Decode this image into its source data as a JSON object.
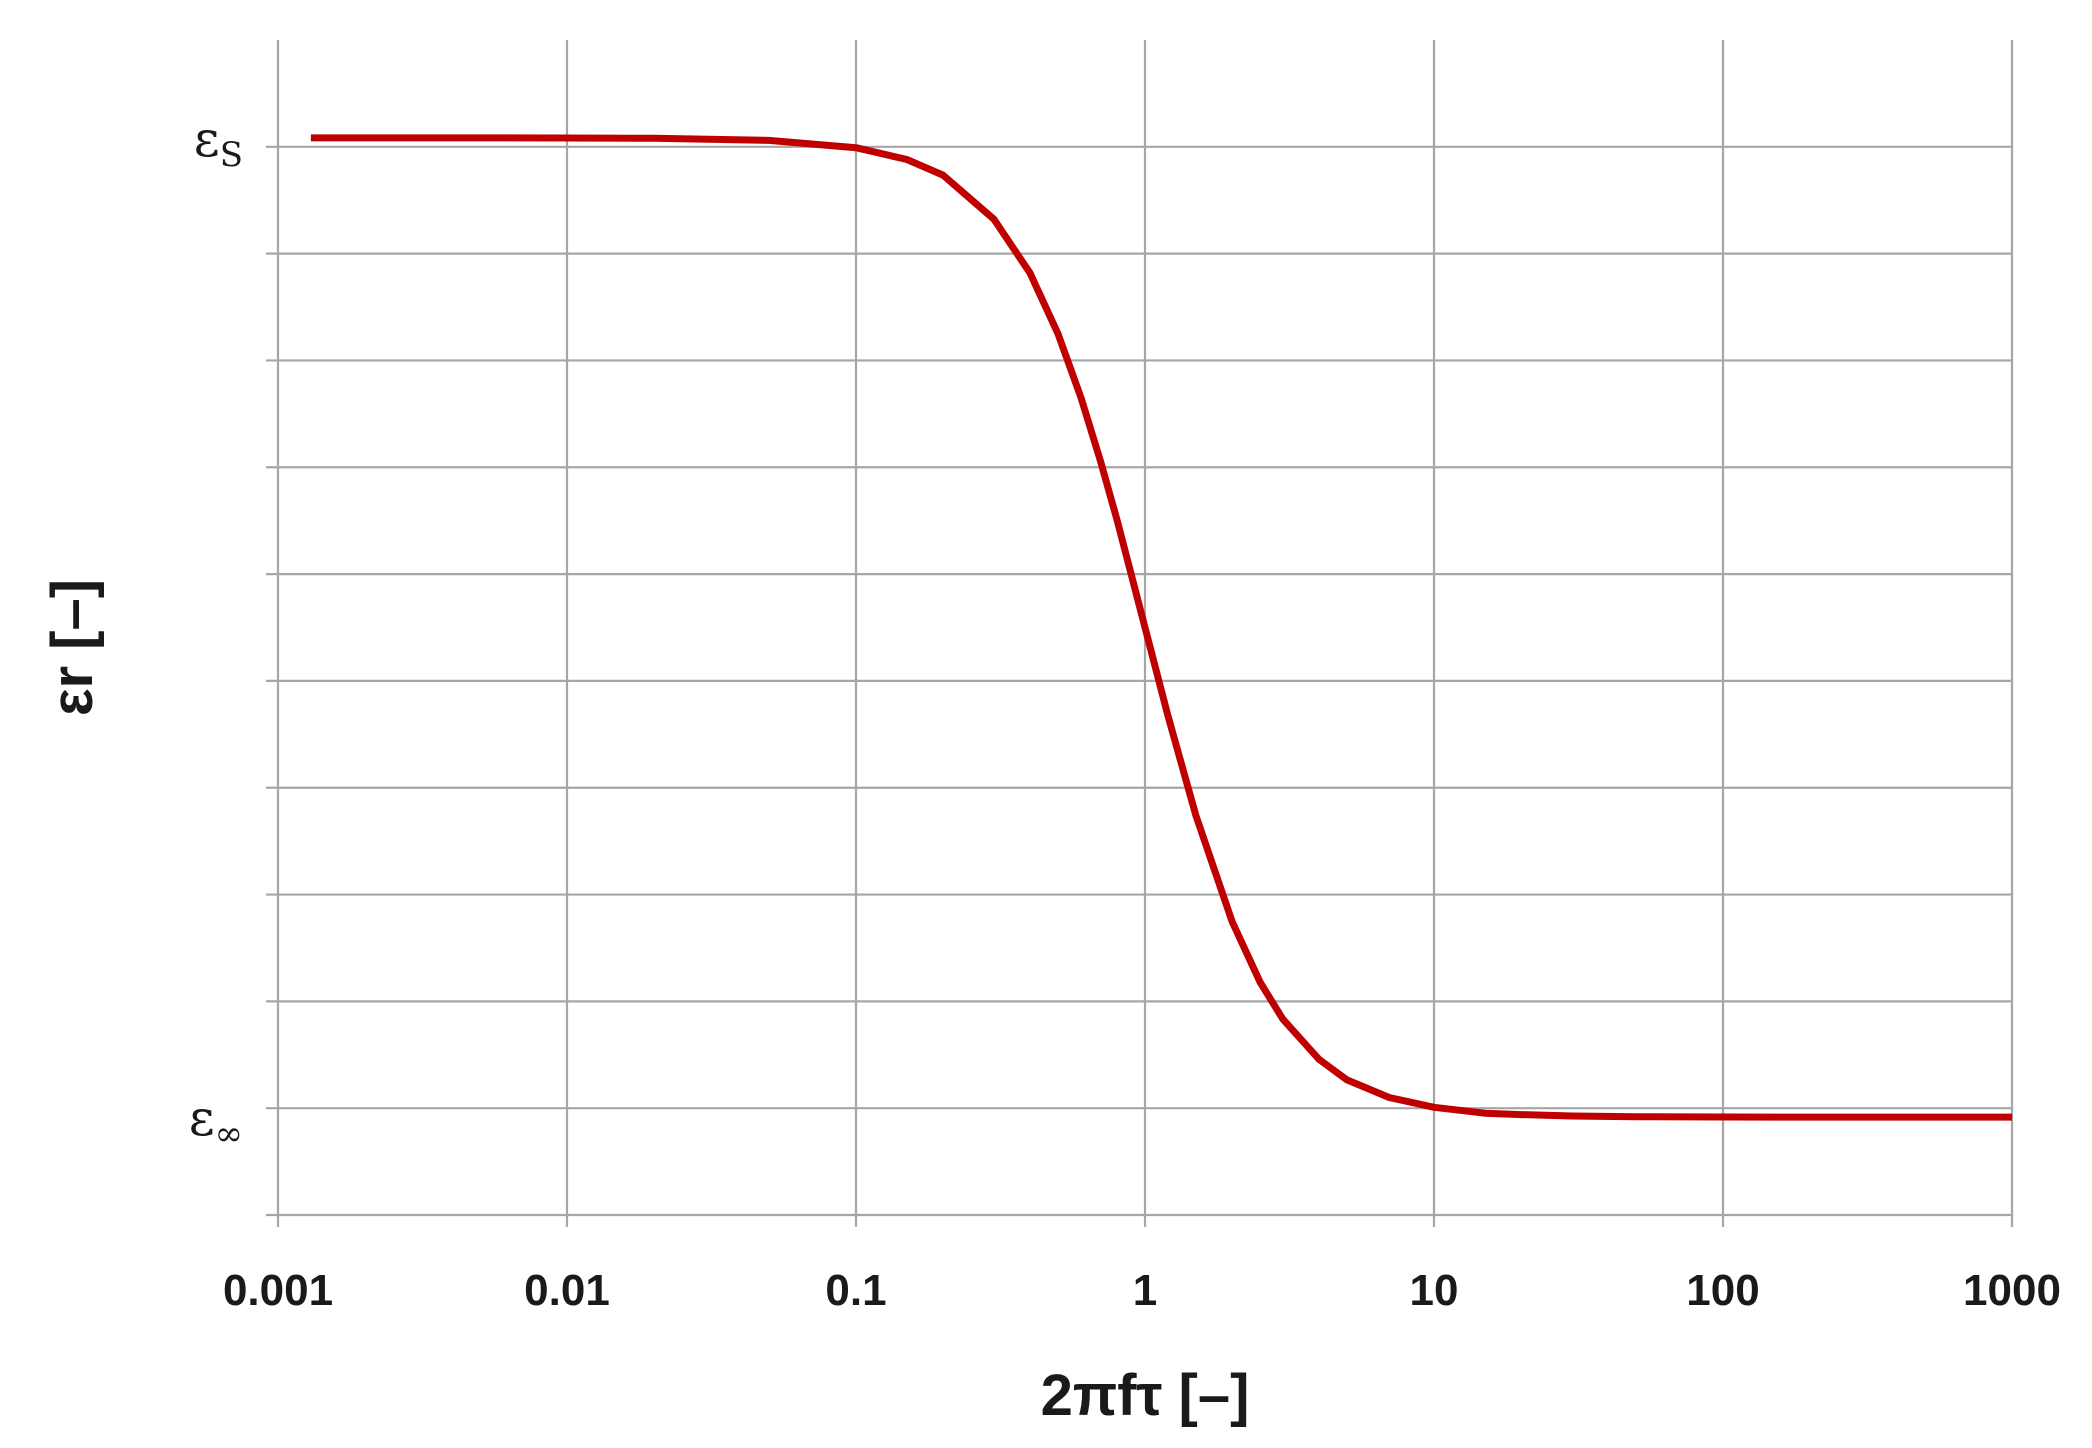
{
  "chart_data": {
    "type": "line",
    "title": "",
    "xlabel": "2πfτ [–]",
    "ylabel": "εr [–]",
    "x_scale": "log",
    "xlim": [
      0.001,
      1000
    ],
    "x_ticks": [
      {
        "value": 0.001,
        "label": "0.001"
      },
      {
        "value": 0.01,
        "label": "0.01"
      },
      {
        "value": 0.1,
        "label": "0.1"
      },
      {
        "value": 1,
        "label": "1"
      },
      {
        "value": 10,
        "label": "10"
      },
      {
        "value": 100,
        "label": "100"
      },
      {
        "value": 1000,
        "label": "1000"
      }
    ],
    "y_ticks": [
      {
        "value": 1,
        "symbol": "ε",
        "subscript": "S"
      },
      {
        "value": 0,
        "symbol": "ε",
        "subscript": "∞"
      }
    ],
    "ylim": [
      -0.1,
      1.1
    ],
    "grid": true,
    "line_color": "#c00000",
    "series": [
      {
        "x": [
          0.0013,
          0.002,
          0.005,
          0.01,
          0.02,
          0.05,
          0.1,
          0.15,
          0.2,
          0.3,
          0.4,
          0.5,
          0.6,
          0.7,
          0.8,
          0.9,
          1,
          1.2,
          1.5,
          2,
          2.5,
          3,
          4,
          5,
          7,
          10,
          15,
          20,
          30,
          50,
          100,
          200,
          500,
          1000
        ],
        "y": [
          1.0,
          1.0,
          1.0,
          0.9999,
          0.9996,
          0.9975,
          0.99,
          0.978,
          0.962,
          0.917,
          0.862,
          0.8,
          0.735,
          0.671,
          0.61,
          0.552,
          0.5,
          0.41,
          0.308,
          0.2,
          0.138,
          0.1,
          0.059,
          0.038,
          0.02,
          0.01,
          0.004,
          0.0025,
          0.0011,
          0.0004,
          0.0001,
          0.0,
          0.0,
          0.0
        ]
      }
    ]
  }
}
